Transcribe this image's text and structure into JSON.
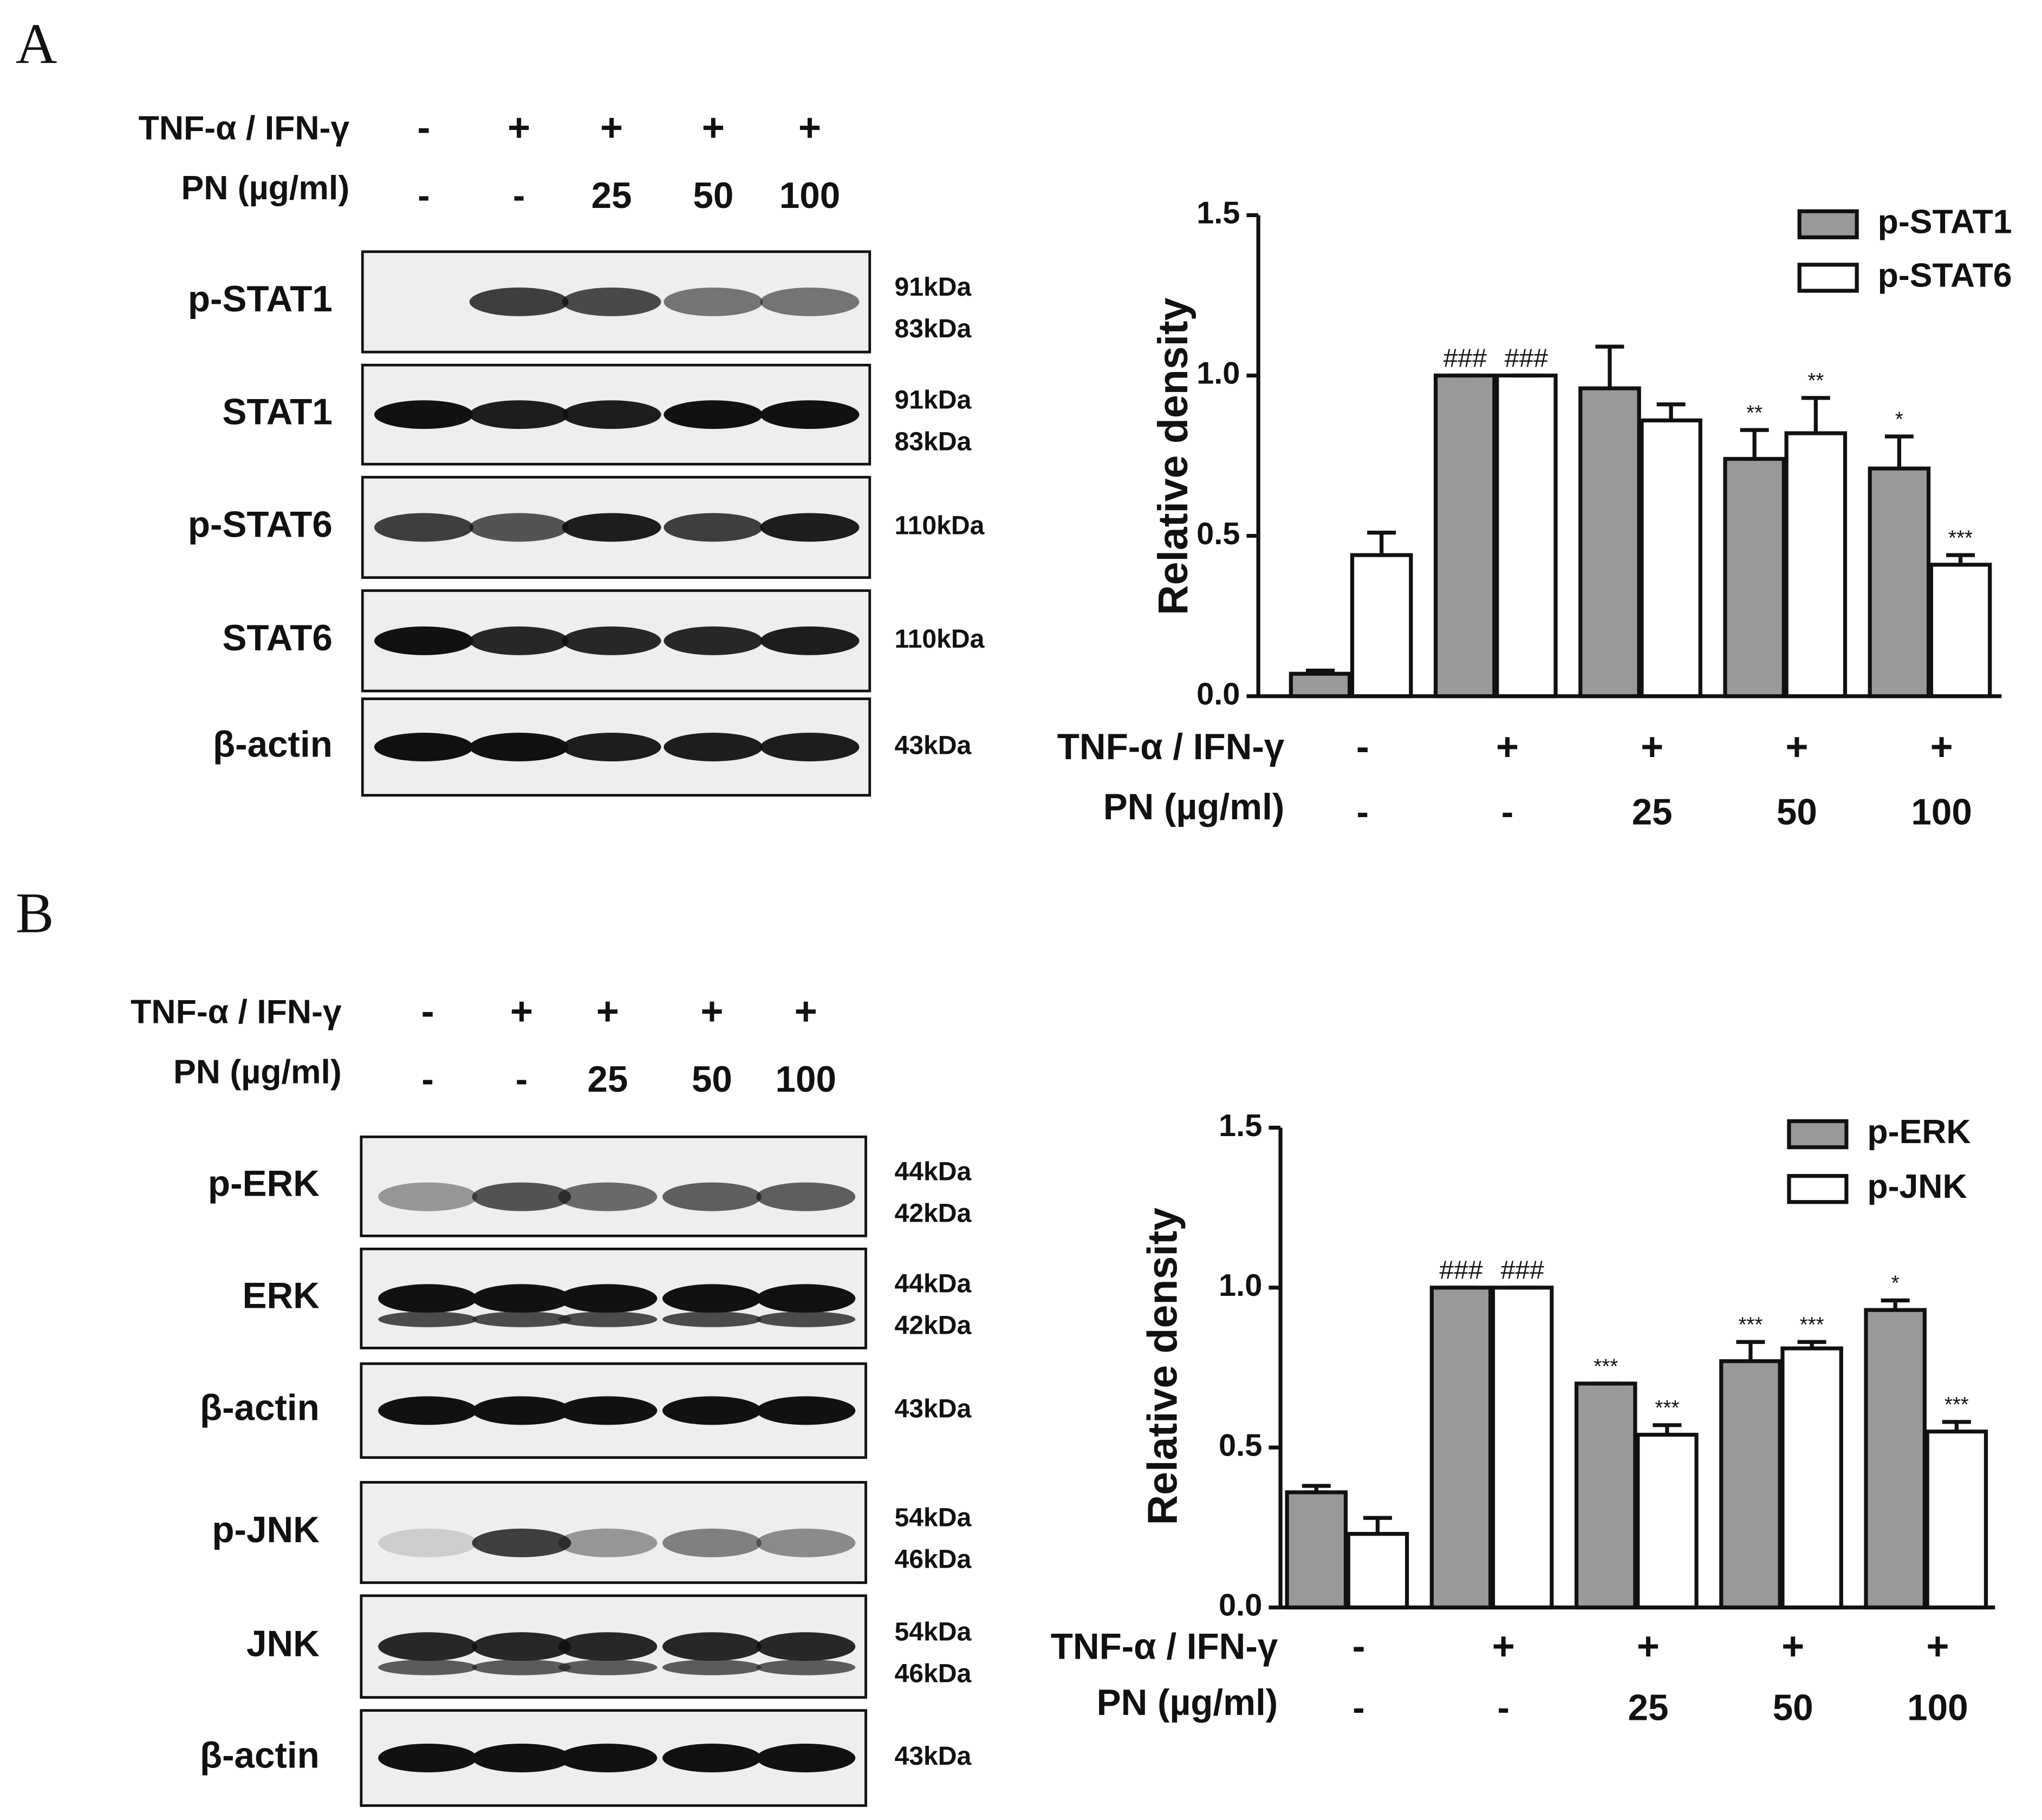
{
  "panel_labels": [
    "A",
    "B"
  ],
  "blots": [
    {
      "treatment_label": "TNF-α / IFN-γ",
      "treatment": [
        "-",
        "+",
        "+",
        "+",
        "+"
      ],
      "dose_label": "PN (µg/ml)",
      "dose": [
        "-",
        "-",
        "25",
        "50",
        "100"
      ],
      "rows": [
        {
          "label": "p-STAT1",
          "kda": [
            "91kDa",
            "83kDa"
          ]
        },
        {
          "label": "STAT1",
          "kda": [
            "91kDa",
            "83kDa"
          ]
        },
        {
          "label": "p-STAT6",
          "kda": [
            "110kDa"
          ]
        },
        {
          "label": "STAT6",
          "kda": [
            "110kDa"
          ]
        },
        {
          "label": "β-actin",
          "kda": [
            "43kDa"
          ]
        }
      ]
    },
    {
      "treatment_label": "TNF-α / IFN-γ",
      "treatment": [
        "-",
        "+",
        "+",
        "+",
        "+"
      ],
      "dose_label": "PN (µg/ml)",
      "dose": [
        "-",
        "-",
        "25",
        "50",
        "100"
      ],
      "rows": [
        {
          "label": "p-ERK",
          "kda": [
            "44kDa",
            "42kDa"
          ]
        },
        {
          "label": "ERK",
          "kda": [
            "44kDa",
            "42kDa"
          ]
        },
        {
          "label": "β-actin",
          "kda": [
            "43kDa"
          ]
        },
        {
          "label": "p-JNK",
          "kda": [
            "54kDa",
            "46kDa"
          ]
        },
        {
          "label": "JNK",
          "kda": [
            "54kDa",
            "46kDa"
          ]
        },
        {
          "label": "β-actin",
          "kda": [
            "43kDa"
          ]
        }
      ]
    }
  ],
  "chart_data": [
    {
      "type": "bar",
      "y_label": "Relative density",
      "treatment_label": "TNF-α / IFN-γ",
      "treatment": [
        "-",
        "+",
        "+",
        "+",
        "+"
      ],
      "categories_label": "PN (µg/ml)",
      "categories": [
        "-",
        "-",
        "25",
        "50",
        "100"
      ],
      "ylim": [
        0,
        1.5
      ],
      "yticks": [
        {
          "value": 0,
          "label": "0.0"
        },
        0.5,
        {
          "value": 1,
          "label": "1.0"
        },
        1.5
      ],
      "legend": "top-right",
      "series": [
        {
          "name": "p-STAT1",
          "color": "#999999",
          "values": [
            0.07,
            1.0,
            0.96,
            0.74,
            0.71
          ],
          "errors": [
            0.01,
            0,
            0.13,
            0.09,
            0.1
          ],
          "annotations": [
            null,
            "###",
            null,
            "**",
            "*"
          ]
        },
        {
          "name": "p-STAT6",
          "color": "#ffffff",
          "values": [
            0.44,
            1.0,
            0.86,
            0.82,
            0.41
          ],
          "errors": [
            0.07,
            0,
            0.05,
            0.11,
            0.03
          ],
          "annotations": [
            null,
            "###",
            null,
            "**",
            "***"
          ]
        }
      ]
    },
    {
      "type": "bar",
      "y_label": "Relative density",
      "treatment_label": "TNF-α / IFN-γ",
      "treatment": [
        "-",
        "+",
        "+",
        "+",
        "+"
      ],
      "categories_label": "PN (µg/ml)",
      "categories": [
        "-",
        "-",
        "25",
        "50",
        "100"
      ],
      "ylim": [
        0,
        1.5
      ],
      "yticks": [
        {
          "value": 0,
          "label": "0.0"
        },
        0.5,
        {
          "value": 1,
          "label": "1.0"
        },
        1.5
      ],
      "legend": "top-right",
      "series": [
        {
          "name": "p-ERK",
          "color": "#999999",
          "values": [
            0.36,
            1.0,
            0.7,
            0.77,
            0.93
          ],
          "errors": [
            0.02,
            0,
            0,
            0.06,
            0.03
          ],
          "annotations": [
            null,
            "###",
            "***",
            "***",
            "*"
          ]
        },
        {
          "name": "p-JNK",
          "color": "#ffffff",
          "values": [
            0.23,
            1.0,
            0.54,
            0.81,
            0.55
          ],
          "errors": [
            0.05,
            0,
            0.03,
            0.02,
            0.03
          ],
          "annotations": [
            null,
            "###",
            "***",
            "***",
            "***"
          ]
        }
      ]
    }
  ]
}
